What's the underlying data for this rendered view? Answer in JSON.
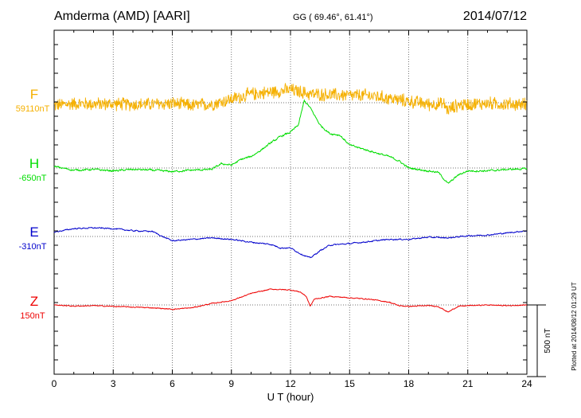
{
  "header": {
    "station": "Amderma (AMD)  [AARI]",
    "coords": "GG ( 69.46°,  61.41°)",
    "date": "2014/07/12"
  },
  "footer": {
    "plotted": "Plotted at 2014/08/12 01:29 UT",
    "scale_label": "500 nT"
  },
  "chart_data": {
    "type": "line",
    "xlabel": "U T (hour)",
    "xlim": [
      0,
      24
    ],
    "xticks": [
      0,
      3,
      6,
      9,
      12,
      15,
      18,
      21,
      24
    ],
    "x_tick_labels": [
      "0",
      "3",
      "6",
      "9",
      "12",
      "15",
      "18",
      "21",
      "24"
    ],
    "scale_bar_nT": 500,
    "grid": "dotted",
    "series": [
      {
        "name": "F",
        "baseline_label": "59110nT",
        "baseline_nT": 59110,
        "color": "#f5b000",
        "noise_nT": 55,
        "keypoints": [
          [
            0,
            -20
          ],
          [
            1,
            -5
          ],
          [
            2,
            -10
          ],
          [
            3,
            -8
          ],
          [
            4,
            -12
          ],
          [
            5,
            -10
          ],
          [
            6,
            -5
          ],
          [
            7,
            -20
          ],
          [
            8,
            -10
          ],
          [
            9,
            25
          ],
          [
            10,
            60
          ],
          [
            11,
            75
          ],
          [
            12,
            90
          ],
          [
            13,
            60
          ],
          [
            14,
            55
          ],
          [
            15,
            50
          ],
          [
            16,
            50
          ],
          [
            17,
            30
          ],
          [
            18,
            10
          ],
          [
            19,
            -10
          ],
          [
            19.8,
            -10
          ],
          [
            20,
            -55
          ],
          [
            20.4,
            -20
          ],
          [
            21,
            -10
          ],
          [
            22,
            -5
          ],
          [
            23,
            -10
          ],
          [
            24,
            -10
          ]
        ]
      },
      {
        "name": "H",
        "baseline_label": "-650nT",
        "baseline_nT": -650,
        "color": "#00dd00",
        "noise_nT": 12,
        "keypoints": [
          [
            0,
            10
          ],
          [
            1,
            -15
          ],
          [
            2,
            -10
          ],
          [
            3,
            -20
          ],
          [
            4,
            -10
          ],
          [
            5,
            -15
          ],
          [
            6,
            -25
          ],
          [
            7,
            -15
          ],
          [
            8,
            -10
          ],
          [
            8.5,
            30
          ],
          [
            9,
            20
          ],
          [
            9.5,
            60
          ],
          [
            10,
            80
          ],
          [
            10.5,
            125
          ],
          [
            11,
            175
          ],
          [
            11.5,
            220
          ],
          [
            12,
            250
          ],
          [
            12.4,
            300
          ],
          [
            12.7,
            470
          ],
          [
            13,
            420
          ],
          [
            13.5,
            300
          ],
          [
            14,
            240
          ],
          [
            14.5,
            230
          ],
          [
            15,
            160
          ],
          [
            16,
            120
          ],
          [
            17,
            80
          ],
          [
            17.5,
            50
          ],
          [
            18,
            0
          ],
          [
            19,
            -20
          ],
          [
            19.5,
            -30
          ],
          [
            20,
            -110
          ],
          [
            20.5,
            -50
          ],
          [
            21,
            -20
          ],
          [
            22,
            -20
          ],
          [
            23,
            -10
          ],
          [
            24,
            -5
          ]
        ]
      },
      {
        "name": "E",
        "baseline_label": "-310nT",
        "baseline_nT": -310,
        "color": "#0000cc",
        "noise_nT": 8,
        "keypoints": [
          [
            0,
            30
          ],
          [
            1,
            55
          ],
          [
            2,
            60
          ],
          [
            3,
            55
          ],
          [
            4,
            40
          ],
          [
            5,
            35
          ],
          [
            5.5,
            0
          ],
          [
            6,
            -30
          ],
          [
            7,
            -20
          ],
          [
            8,
            -10
          ],
          [
            9,
            -20
          ],
          [
            10,
            -40
          ],
          [
            11,
            -55
          ],
          [
            11.5,
            -80
          ],
          [
            12,
            -80
          ],
          [
            12.5,
            -120
          ],
          [
            13,
            -150
          ],
          [
            13.5,
            -100
          ],
          [
            14,
            -60
          ],
          [
            15,
            -50
          ],
          [
            16,
            -35
          ],
          [
            17,
            -20
          ],
          [
            18,
            -20
          ],
          [
            19,
            -5
          ],
          [
            20,
            -10
          ],
          [
            21,
            5
          ],
          [
            22,
            10
          ],
          [
            23,
            25
          ],
          [
            24,
            40
          ]
        ]
      },
      {
        "name": "Z",
        "baseline_label": "150nT",
        "baseline_nT": 150,
        "color": "#ee0000",
        "noise_nT": 6,
        "keypoints": [
          [
            0,
            0
          ],
          [
            1,
            -8
          ],
          [
            2,
            -5
          ],
          [
            3,
            -10
          ],
          [
            4,
            -15
          ],
          [
            5,
            -20
          ],
          [
            6,
            -30
          ],
          [
            7,
            -20
          ],
          [
            8,
            10
          ],
          [
            9,
            30
          ],
          [
            10,
            80
          ],
          [
            11,
            110
          ],
          [
            12,
            105
          ],
          [
            12.5,
            90
          ],
          [
            12.8,
            60
          ],
          [
            13,
            -10
          ],
          [
            13.2,
            40
          ],
          [
            14,
            60
          ],
          [
            15,
            50
          ],
          [
            16,
            40
          ],
          [
            17,
            20
          ],
          [
            17.5,
            -5
          ],
          [
            18,
            -10
          ],
          [
            19,
            -5
          ],
          [
            19.5,
            -10
          ],
          [
            20,
            -50
          ],
          [
            20.5,
            -10
          ],
          [
            21,
            -5
          ],
          [
            22,
            0
          ],
          [
            23,
            -5
          ],
          [
            24,
            0
          ]
        ]
      }
    ]
  }
}
